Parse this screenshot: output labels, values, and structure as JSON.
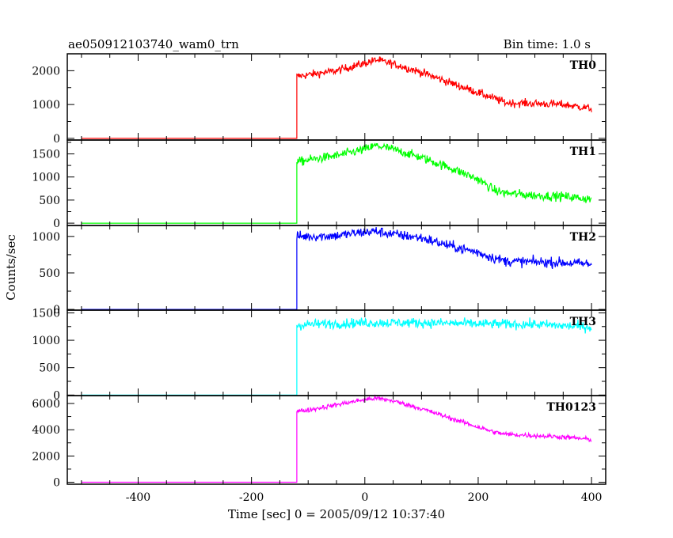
{
  "chart_data": {
    "type": "line",
    "title_left": "ae050912103740_wam0_trn",
    "title_right": "Bin time: 1.0 s",
    "xlabel": "Time [sec] 0 = 2005/09/12 10:37:40",
    "ylabel": "Counts/sec",
    "xlim": [
      -525,
      425
    ],
    "xticks": [
      -400,
      -200,
      0,
      200,
      400
    ],
    "x_start": -500,
    "x_end": 400,
    "onset": -120,
    "panels": [
      {
        "name": "TH0",
        "color": "#ff0000",
        "ylim": [
          -50,
          2500
        ],
        "yticks": [
          0,
          1000,
          2000
        ],
        "noise": 60,
        "pre_level": 0,
        "points": [
          [
            -120,
            1830
          ],
          [
            -100,
            1880
          ],
          [
            -50,
            2000
          ],
          [
            0,
            2220
          ],
          [
            20,
            2320
          ],
          [
            50,
            2200
          ],
          [
            100,
            1950
          ],
          [
            150,
            1650
          ],
          [
            200,
            1350
          ],
          [
            250,
            1050
          ],
          [
            300,
            1030
          ],
          [
            350,
            1000
          ],
          [
            400,
            880
          ]
        ]
      },
      {
        "name": "TH1",
        "color": "#00ff00",
        "ylim": [
          -50,
          1800
        ],
        "yticks": [
          0,
          500,
          1000,
          1500
        ],
        "noise": 50,
        "pre_level": 0,
        "points": [
          [
            -120,
            1320
          ],
          [
            -100,
            1370
          ],
          [
            -50,
            1460
          ],
          [
            0,
            1600
          ],
          [
            20,
            1680
          ],
          [
            50,
            1600
          ],
          [
            100,
            1420
          ],
          [
            150,
            1200
          ],
          [
            200,
            950
          ],
          [
            230,
            700
          ],
          [
            250,
            650
          ],
          [
            300,
            600
          ],
          [
            350,
            580
          ],
          [
            400,
            520
          ]
        ]
      },
      {
        "name": "TH2",
        "color": "#0000ff",
        "ylim": [
          -10,
          1150
        ],
        "yticks": [
          0,
          500,
          1000
        ],
        "noise": 35,
        "pre_level": 0,
        "points": [
          [
            -120,
            1000
          ],
          [
            -100,
            1000
          ],
          [
            -50,
            1010
          ],
          [
            0,
            1060
          ],
          [
            20,
            1070
          ],
          [
            50,
            1030
          ],
          [
            100,
            980
          ],
          [
            150,
            870
          ],
          [
            200,
            780
          ],
          [
            230,
            700
          ],
          [
            250,
            660
          ],
          [
            300,
            650
          ],
          [
            350,
            640
          ],
          [
            400,
            620
          ]
        ]
      },
      {
        "name": "TH3",
        "color": "#00ffff",
        "ylim": [
          -10,
          1550
        ],
        "yticks": [
          0,
          500,
          1000,
          1500
        ],
        "noise": 45,
        "pre_level": 0,
        "points": [
          [
            -120,
            1270
          ],
          [
            -100,
            1290
          ],
          [
            0,
            1320
          ],
          [
            100,
            1320
          ],
          [
            200,
            1300
          ],
          [
            300,
            1290
          ],
          [
            400,
            1240
          ]
        ]
      },
      {
        "name": "TH0123",
        "color": "#ff00ff",
        "ylim": [
          -150,
          6600
        ],
        "yticks": [
          0,
          2000,
          4000,
          6000
        ],
        "noise": 90,
        "pre_level": 0,
        "points": [
          [
            -120,
            5400
          ],
          [
            -100,
            5500
          ],
          [
            -50,
            5900
          ],
          [
            0,
            6300
          ],
          [
            20,
            6400
          ],
          [
            50,
            6200
          ],
          [
            100,
            5600
          ],
          [
            150,
            4900
          ],
          [
            200,
            4200
          ],
          [
            230,
            3800
          ],
          [
            250,
            3650
          ],
          [
            300,
            3550
          ],
          [
            350,
            3450
          ],
          [
            400,
            3250
          ]
        ]
      }
    ]
  }
}
